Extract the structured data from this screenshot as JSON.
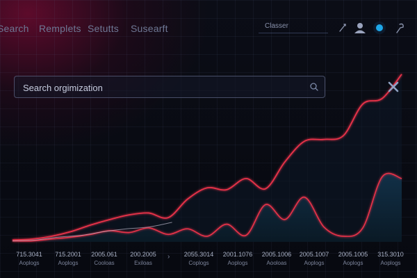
{
  "nav": {
    "items": [
      "Search",
      "Remplets",
      "Setutts",
      "Susearft"
    ]
  },
  "tab": {
    "label": "Classer"
  },
  "colors": {
    "accent": "#e8334a",
    "fill": "#0f2230",
    "dot": "#1ea7e8",
    "text": "#9aa3b5"
  },
  "icons": [
    "edit-icon",
    "user-icon",
    "status-dot-icon",
    "pin-icon",
    "search-icon",
    "close-icon"
  ],
  "search": {
    "placeholder": "Search orgimization"
  },
  "chart_data": {
    "type": "area",
    "x_ticks": [
      {
        "label": "715.3041",
        "sub": "Aoplogs"
      },
      {
        "label": "715.2001",
        "sub": "Aoplogs"
      },
      {
        "label": "2005.061",
        "sub": "Cooloas"
      },
      {
        "label": "200.2005",
        "sub": "Exiloas"
      },
      {
        "label": "2055.3014",
        "sub": "Coplogs"
      },
      {
        "label": "2001.1076",
        "sub": "Aoplogs"
      },
      {
        "label": "2005.1006",
        "sub": "Aooloas"
      },
      {
        "label": "2005.1007",
        "sub": "Aoplogs"
      },
      {
        "label": "2005.1005",
        "sub": "Aoplogs"
      },
      {
        "label": "315.3010",
        "sub": "Aoplogs"
      }
    ],
    "series": [
      {
        "values": [
          2,
          3,
          6,
          11,
          18,
          24,
          29,
          31,
          26,
          46,
          58,
          56,
          68,
          57,
          86,
          108,
          110,
          114,
          148,
          154,
          180
        ]
      },
      {
        "values": [
          1,
          1,
          3,
          5,
          8,
          12,
          10,
          15,
          8,
          14,
          6,
          19,
          7,
          40,
          24,
          48,
          16,
          6,
          15,
          70,
          68
        ]
      },
      {
        "values": [
          1,
          2,
          5,
          7,
          11,
          14,
          16,
          21
        ]
      }
    ],
    "ylim": [
      0,
      200
    ]
  }
}
